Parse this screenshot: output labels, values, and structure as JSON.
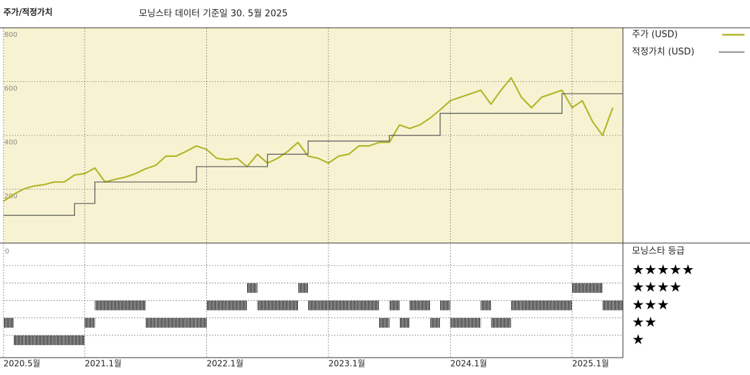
{
  "chart_data": [
    {
      "type": "line",
      "title": "주가/적정가치",
      "subtitle": "모닝스타 데이터 기준일 30. 5월 2025",
      "x": [
        "2020-05",
        "2020-06",
        "2020-07",
        "2020-08",
        "2020-09",
        "2020-10",
        "2020-11",
        "2020-12",
        "2021-01",
        "2021-02",
        "2021-03",
        "2021-04",
        "2021-05",
        "2021-06",
        "2021-07",
        "2021-08",
        "2021-09",
        "2021-10",
        "2021-11",
        "2021-12",
        "2022-01",
        "2022-02",
        "2022-03",
        "2022-04",
        "2022-05",
        "2022-06",
        "2022-07",
        "2022-08",
        "2022-09",
        "2022-10",
        "2022-11",
        "2022-12",
        "2023-01",
        "2023-02",
        "2023-03",
        "2023-04",
        "2023-05",
        "2023-06",
        "2023-07",
        "2023-08",
        "2023-09",
        "2023-10",
        "2023-11",
        "2023-12",
        "2024-01",
        "2024-02",
        "2024-03",
        "2024-04",
        "2024-05",
        "2024-06",
        "2024-07",
        "2024-08",
        "2024-09",
        "2024-10",
        "2024-11",
        "2024-12",
        "2025-01",
        "2025-02",
        "2025-03",
        "2025-04",
        "2025-05"
      ],
      "series": [
        {
          "name": "주가 (USD)",
          "color": "#b3b62c",
          "style": "line",
          "values": [
            155,
            181,
            201,
            212,
            217,
            227,
            227,
            253,
            258,
            279,
            227,
            237,
            245,
            258,
            276,
            289,
            323,
            323,
            341,
            361,
            348,
            315,
            310,
            315,
            284,
            330,
            297,
            315,
            341,
            374,
            323,
            315,
            297,
            323,
            330,
            361,
            361,
            374,
            374,
            439,
            426,
            439,
            464,
            495,
            529,
            542,
            555,
            568,
            516,
            568,
            614,
            542,
            503,
            542,
            555,
            568,
            503,
            529,
            452,
            400,
            503
          ]
        },
        {
          "name": "적정가치 (USD)",
          "color": "#555555",
          "style": "step",
          "values": [
            103,
            103,
            103,
            103,
            103,
            103,
            103,
            147,
            147,
            227,
            227,
            227,
            227,
            227,
            227,
            227,
            227,
            227,
            227,
            284,
            284,
            284,
            284,
            284,
            284,
            284,
            330,
            330,
            330,
            330,
            379,
            379,
            379,
            379,
            379,
            379,
            379,
            379,
            400,
            400,
            400,
            400,
            400,
            482,
            482,
            482,
            482,
            482,
            482,
            482,
            482,
            482,
            482,
            482,
            482,
            555,
            555,
            555,
            555,
            555,
            555
          ]
        }
      ],
      "xlim": [
        "2020-05",
        "2025-06"
      ],
      "ylim": [
        0,
        800
      ],
      "yticks": [
        200,
        400,
        600,
        800
      ],
      "grid": true,
      "background": "#f7f3d2"
    },
    {
      "type": "rating",
      "title": "모닝스타 등급",
      "corner_label": "0",
      "x": [
        "2020-05",
        "2020-06",
        "2020-07",
        "2020-08",
        "2020-09",
        "2020-10",
        "2020-11",
        "2020-12",
        "2021-01",
        "2021-02",
        "2021-03",
        "2021-04",
        "2021-05",
        "2021-06",
        "2021-07",
        "2021-08",
        "2021-09",
        "2021-10",
        "2021-11",
        "2021-12",
        "2022-01",
        "2022-02",
        "2022-03",
        "2022-04",
        "2022-05",
        "2022-06",
        "2022-07",
        "2022-08",
        "2022-09",
        "2022-10",
        "2022-11",
        "2022-12",
        "2023-01",
        "2023-02",
        "2023-03",
        "2023-04",
        "2023-05",
        "2023-06",
        "2023-07",
        "2023-08",
        "2023-09",
        "2023-10",
        "2023-11",
        "2023-12",
        "2024-01",
        "2024-02",
        "2024-03",
        "2024-04",
        "2024-05",
        "2024-06",
        "2024-07",
        "2024-08",
        "2024-09",
        "2024-10",
        "2024-11",
        "2024-12",
        "2025-01",
        "2025-02",
        "2025-03",
        "2025-04",
        "2025-05"
      ],
      "values": [
        2,
        1,
        1,
        1,
        1,
        1,
        1,
        1,
        2,
        3,
        3,
        3,
        3,
        3,
        2,
        2,
        2,
        2,
        2,
        2,
        3,
        3,
        3,
        3,
        4,
        3,
        3,
        3,
        3,
        4,
        3,
        3,
        3,
        3,
        3,
        3,
        3,
        2,
        3,
        2,
        3,
        3,
        2,
        3,
        2,
        2,
        2,
        3,
        2,
        2,
        3,
        3,
        3,
        3,
        3,
        3,
        4,
        4,
        4,
        3,
        3
      ],
      "levels": [
        "★",
        "★★",
        "★★★",
        "★★★★",
        "★★★★★"
      ],
      "xlim": [
        "2020-05",
        "2025-06"
      ],
      "ylim": [
        0,
        6.5
      ],
      "xticks": [
        {
          "value": "2020-05",
          "label": "2020.5월"
        },
        {
          "value": "2021-01",
          "label": "2021.1월"
        },
        {
          "value": "2022-01",
          "label": "2022.1월"
        },
        {
          "value": "2023-01",
          "label": "2023.1월"
        },
        {
          "value": "2024-01",
          "label": "2024.1월"
        },
        {
          "value": "2025-01",
          "label": "2025.1월"
        }
      ]
    }
  ]
}
